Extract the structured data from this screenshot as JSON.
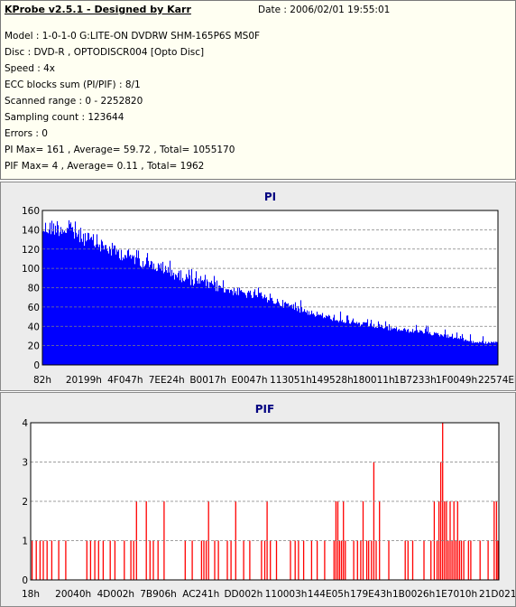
{
  "info": {
    "title": "KProbe v2.5.1 - Designed by Karr",
    "date": "Date : 2006/02/01 19:55:01",
    "lines": [
      "Model : 1-0-1-0 G:LITE-ON DVDRW SHM-165P6S MS0F",
      "Disc : DVD-R , OPTODISCR004 [Opto Disc]",
      "Speed : 4x",
      "ECC blocks sum (PI/PIF) : 8/1",
      "Scanned range : 0 - 2252820",
      "Sampling count : 123644",
      "Errors : 0",
      "PI Max= 161 , Average= 59.72 , Total= 1055170",
      "PIF Max= 4 , Average= 0.11 , Total= 1962"
    ]
  },
  "colors": {
    "info_bg": "#fffff2",
    "panel_bg": "#ececec",
    "pi_bar": "#0000ff",
    "pif_bar": "#ff0000",
    "title": "#000080"
  },
  "chart_data": [
    {
      "type": "bar",
      "title": "PI",
      "ylim": [
        0,
        160
      ],
      "y_ticks": [
        "0",
        "20",
        "40",
        "60",
        "80",
        "100",
        "120",
        "140",
        "160"
      ],
      "x_ticks": [
        "82h",
        "20199h",
        "4F047h",
        "7EE24h",
        "B0017h",
        "E0047h",
        "113051h",
        "149528h",
        "180011h",
        "1B7233h",
        "1F0049h",
        "22574Eh"
      ],
      "grid": "horizontal dashed",
      "envelope_x": [
        0,
        0.03,
        0.06,
        0.1,
        0.15,
        0.2,
        0.25,
        0.3,
        0.35,
        0.4,
        0.45,
        0.5,
        0.55,
        0.6,
        0.65,
        0.7,
        0.75,
        0.8,
        0.85,
        0.9,
        0.95,
        1.0
      ],
      "envelope_y": [
        150,
        152,
        148,
        138,
        127,
        118,
        108,
        98,
        90,
        84,
        78,
        72,
        64,
        56,
        50,
        45,
        41,
        38,
        35,
        31,
        25,
        24
      ],
      "max": 161,
      "average": 59.72
    },
    {
      "type": "bar",
      "title": "PIF",
      "ylim": [
        0,
        4
      ],
      "y_ticks": [
        "0",
        "1",
        "2",
        "3",
        "4"
      ],
      "x_ticks": [
        "18h",
        "20040h",
        "4D002h",
        "7B906h",
        "AC241h",
        "DD002h",
        "110003h",
        "144E05h",
        "179E43h",
        "1B0026h",
        "1E7010h",
        "21D021h"
      ],
      "grid": "horizontal dashed",
      "spikes": [
        [
          0.003,
          1
        ],
        [
          0.012,
          1
        ],
        [
          0.02,
          1
        ],
        [
          0.027,
          1
        ],
        [
          0.035,
          1
        ],
        [
          0.045,
          1
        ],
        [
          0.06,
          1
        ],
        [
          0.075,
          1
        ],
        [
          0.12,
          1
        ],
        [
          0.128,
          1
        ],
        [
          0.137,
          1
        ],
        [
          0.145,
          1
        ],
        [
          0.155,
          1
        ],
        [
          0.17,
          1
        ],
        [
          0.18,
          1
        ],
        [
          0.2,
          1
        ],
        [
          0.214,
          1
        ],
        [
          0.22,
          1
        ],
        [
          0.226,
          2
        ],
        [
          0.247,
          2
        ],
        [
          0.255,
          1
        ],
        [
          0.262,
          1
        ],
        [
          0.272,
          1
        ],
        [
          0.285,
          2
        ],
        [
          0.33,
          1
        ],
        [
          0.345,
          1
        ],
        [
          0.365,
          1
        ],
        [
          0.37,
          1
        ],
        [
          0.375,
          1
        ],
        [
          0.38,
          2
        ],
        [
          0.393,
          1
        ],
        [
          0.401,
          1
        ],
        [
          0.42,
          1
        ],
        [
          0.428,
          1
        ],
        [
          0.438,
          2
        ],
        [
          0.455,
          1
        ],
        [
          0.468,
          1
        ],
        [
          0.493,
          1
        ],
        [
          0.5,
          1
        ],
        [
          0.505,
          2
        ],
        [
          0.512,
          1
        ],
        [
          0.525,
          1
        ],
        [
          0.555,
          1
        ],
        [
          0.565,
          1
        ],
        [
          0.572,
          1
        ],
        [
          0.583,
          1
        ],
        [
          0.6,
          1
        ],
        [
          0.612,
          1
        ],
        [
          0.628,
          1
        ],
        [
          0.648,
          1
        ],
        [
          0.652,
          2
        ],
        [
          0.656,
          2
        ],
        [
          0.66,
          1
        ],
        [
          0.664,
          1
        ],
        [
          0.668,
          2
        ],
        [
          0.672,
          1
        ],
        [
          0.69,
          1
        ],
        [
          0.698,
          1
        ],
        [
          0.705,
          1
        ],
        [
          0.71,
          2
        ],
        [
          0.718,
          1
        ],
        [
          0.722,
          1
        ],
        [
          0.728,
          1
        ],
        [
          0.733,
          3
        ],
        [
          0.738,
          1
        ],
        [
          0.745,
          2
        ],
        [
          0.765,
          1
        ],
        [
          0.8,
          1
        ],
        [
          0.806,
          1
        ],
        [
          0.816,
          1
        ],
        [
          0.84,
          1
        ],
        [
          0.855,
          1
        ],
        [
          0.862,
          2
        ],
        [
          0.868,
          1
        ],
        [
          0.872,
          2
        ],
        [
          0.876,
          3
        ],
        [
          0.88,
          4
        ],
        [
          0.884,
          2
        ],
        [
          0.888,
          2
        ],
        [
          0.892,
          1
        ],
        [
          0.896,
          2
        ],
        [
          0.9,
          1
        ],
        [
          0.904,
          2
        ],
        [
          0.908,
          1
        ],
        [
          0.912,
          2
        ],
        [
          0.916,
          1
        ],
        [
          0.92,
          1
        ],
        [
          0.925,
          1
        ],
        [
          0.935,
          1
        ],
        [
          0.94,
          1
        ],
        [
          0.96,
          1
        ],
        [
          0.977,
          1
        ],
        [
          0.99,
          2
        ],
        [
          0.995,
          2
        ],
        [
          0.998,
          1
        ]
      ],
      "max": 4,
      "average": 0.11
    }
  ]
}
